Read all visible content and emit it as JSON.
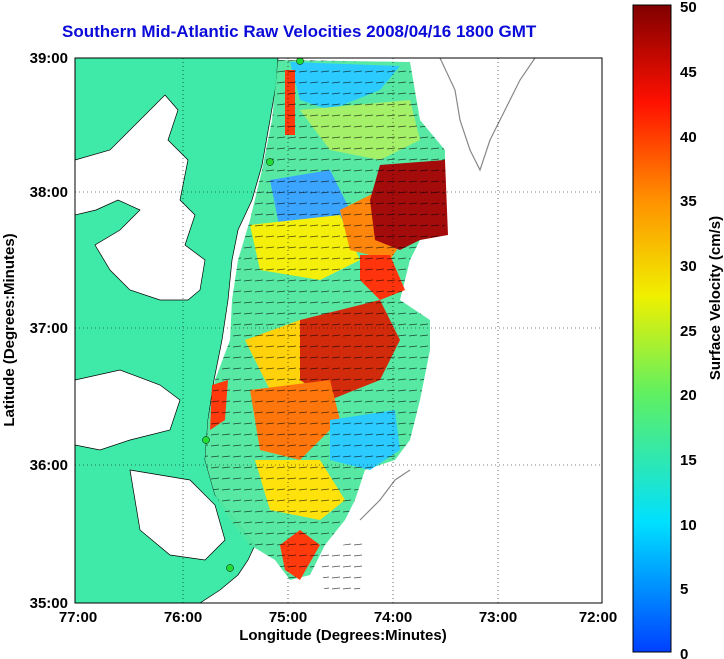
{
  "title": "Southern Mid-Atlantic Raw Velocities 2008/04/16 1800 GMT",
  "xlabel": "Longitude (Degrees:Minutes)",
  "ylabel": "Latitude (Degrees:Minutes)",
  "x_ticks": [
    "77:00",
    "76:00",
    "75:00",
    "74:00",
    "73:00",
    "72:00"
  ],
  "y_ticks": [
    "39:00",
    "38:00",
    "37:00",
    "36:00",
    "35:00"
  ],
  "colorbar": {
    "label": "Surface Velocity (cm/s)",
    "ticks": [
      "50",
      "45",
      "40",
      "35",
      "30",
      "25",
      "20",
      "15",
      "10",
      "5",
      "0"
    ],
    "range": [
      0,
      50
    ]
  },
  "colors": {
    "land": "#3fe9a7",
    "title": "#0b0bd9",
    "station": "#22dd33"
  }
}
